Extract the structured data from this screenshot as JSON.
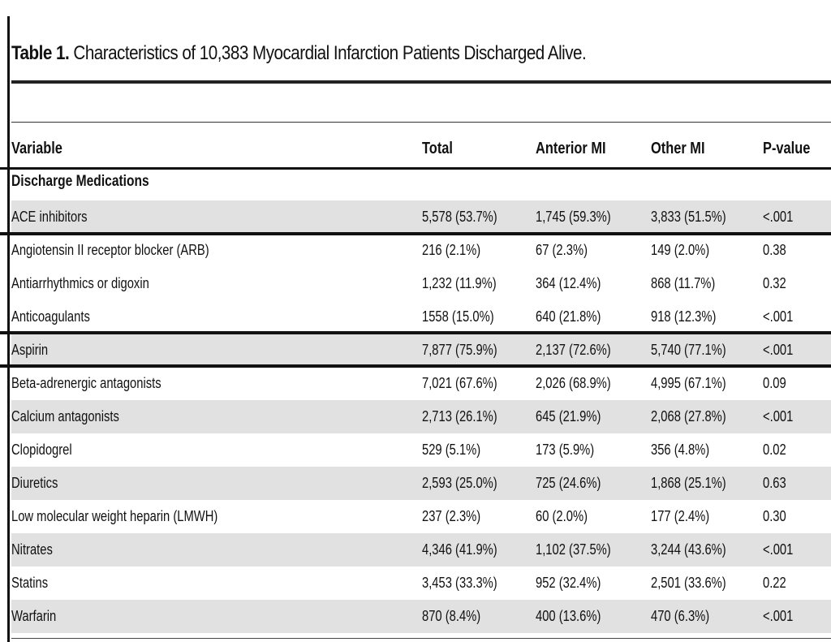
{
  "table": {
    "title_prefix": "Table 1.",
    "title_text": " Characteristics of 10,383 Myocardial Infarction Patients Discharged Alive.",
    "headers": [
      "Variable",
      "Total",
      "Anterior MI",
      "Other MI",
      "P-value"
    ],
    "section_label": "Discharge Medications",
    "rows": [
      {
        "variable": "ACE inhibitors",
        "total": "5,578 (53.7%)",
        "anterior": "1,745 (59.3%)",
        "other": "3,833 (51.5%)",
        "p": "<.001"
      },
      {
        "variable": "Angiotensin II receptor blocker (ARB)",
        "total": "216 (2.1%)",
        "anterior": "67 (2.3%)",
        "other": "149 (2.0%)",
        "p": "0.38"
      },
      {
        "variable": "Antiarrhythmics or digoxin",
        "total": "1,232 (11.9%)",
        "anterior": "364 (12.4%)",
        "other": "868 (11.7%)",
        "p": "0.32"
      },
      {
        "variable": "Anticoagulants",
        "total": "1558 (15.0%)",
        "anterior": "640 (21.8%)",
        "other": "918 (12.3%)",
        "p": "<.001"
      },
      {
        "variable": "Aspirin",
        "total": "7,877 (75.9%)",
        "anterior": "2,137 (72.6%)",
        "other": "5,740 (77.1%)",
        "p": "<.001"
      },
      {
        "variable": "Beta-adrenergic antagonists",
        "total": "7,021 (67.6%)",
        "anterior": "2,026 (68.9%)",
        "other": "4,995 (67.1%)",
        "p": "0.09"
      },
      {
        "variable": "Calcium antagonists",
        "total": "2,713 (26.1%)",
        "anterior": "645 (21.9%)",
        "other": "2,068 (27.8%)",
        "p": "<.001"
      },
      {
        "variable": "Clopidogrel",
        "total": "529 (5.1%)",
        "anterior": "173 (5.9%)",
        "other": "356 (4.8%)",
        "p": "0.02"
      },
      {
        "variable": "Diuretics",
        "total": "2,593 (25.0%)",
        "anterior": "725 (24.6%)",
        "other": "1,868 (25.1%)",
        "p": "0.63"
      },
      {
        "variable": "Low molecular weight heparin (LMWH)",
        "total": "237 (2.3%)",
        "anterior": "60 (2.0%)",
        "other": "177 (2.4%)",
        "p": "0.30"
      },
      {
        "variable": "Nitrates",
        "total": "4,346 (41.9%)",
        "anterior": "1,102 (37.5%)",
        "other": "3,244 (43.6%)",
        "p": "<.001"
      },
      {
        "variable": "Statins",
        "total": "3,453 (33.3%)",
        "anterior": "952 (32.4%)",
        "other": "2,501 (33.6%)",
        "p": "0.22"
      },
      {
        "variable": "Warfarin",
        "total": "870 (8.4%)",
        "anterior": "400 (13.6%)",
        "other": "470 (6.3%)",
        "p": "<.001"
      }
    ]
  }
}
